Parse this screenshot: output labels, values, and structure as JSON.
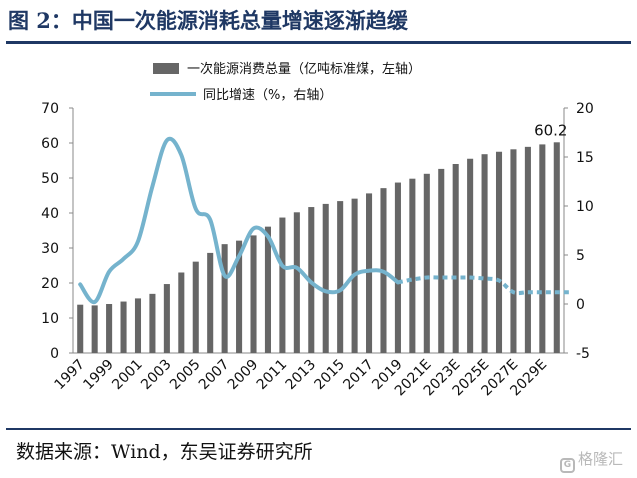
{
  "header": {
    "title": "图 2：中国一次能源消耗总量增速逐渐趋缓"
  },
  "footer": {
    "source": "数据来源：Wind，东吴证券研究所"
  },
  "watermark": {
    "logo_glyph": "G",
    "text": "格隆汇"
  },
  "chart_data": {
    "type": "bar+line",
    "title": "图 2：中国一次能源消耗总量增速逐渐趋缓",
    "legend": [
      {
        "name": "一次能源消费总量（亿吨标准煤，左轴）",
        "kind": "bar",
        "color": "#666666"
      },
      {
        "name": "同比增速（%，右轴）",
        "kind": "line",
        "color": "#75b3cd"
      }
    ],
    "left_axis": {
      "min": 0,
      "max": 70,
      "ticks": [
        0,
        10,
        20,
        30,
        40,
        50,
        60,
        70
      ]
    },
    "right_axis": {
      "min": -5,
      "max": 20,
      "ticks": [
        -5,
        0,
        5,
        10,
        15,
        20
      ]
    },
    "categories": [
      "1997",
      "1998",
      "1999",
      "2000",
      "2001",
      "2002",
      "2003",
      "2004",
      "2005",
      "2006",
      "2007",
      "2008",
      "2009",
      "2010",
      "2011",
      "2012",
      "2013",
      "2014",
      "2015",
      "2016",
      "2017",
      "2018",
      "2019",
      "2020E",
      "2021E",
      "2022E",
      "2023E",
      "2024E",
      "2025E",
      "2026E",
      "2027E",
      "2028E",
      "2029E",
      "2030E"
    ],
    "x_tick_labels": [
      "1997",
      "1999",
      "2001",
      "2003",
      "2005",
      "2007",
      "2009",
      "2011",
      "2013",
      "2015",
      "2017",
      "2019",
      "2021E",
      "2023E",
      "2025E",
      "2027E",
      "2029E"
    ],
    "bar_values": [
      13.8,
      13.6,
      14.0,
      14.7,
      15.6,
      16.9,
      19.7,
      23.0,
      26.1,
      28.6,
      31.1,
      32.1,
      33.6,
      36.1,
      38.7,
      40.2,
      41.7,
      42.6,
      43.4,
      44.1,
      45.6,
      47.1,
      48.7,
      49.8,
      51.2,
      52.6,
      54.0,
      55.5,
      56.8,
      57.5,
      58.2,
      58.9,
      59.6,
      60.2
    ],
    "bar_data_label": {
      "category": "2030E",
      "text": "60.2"
    },
    "growth_actual": [
      2.0,
      0.2,
      3.3,
      4.6,
      6.4,
      12.0,
      16.7,
      15.2,
      9.7,
      8.6,
      2.9,
      4.9,
      7.7,
      6.9,
      3.9,
      3.7,
      2.2,
      1.3,
      1.4,
      3.0,
      3.4,
      3.3,
      2.2
    ],
    "growth_forecast": [
      2.5,
      2.7,
      2.7,
      2.7,
      2.7,
      2.6,
      2.4,
      1.2,
      1.2,
      1.2,
      1.2,
      1.2
    ]
  }
}
